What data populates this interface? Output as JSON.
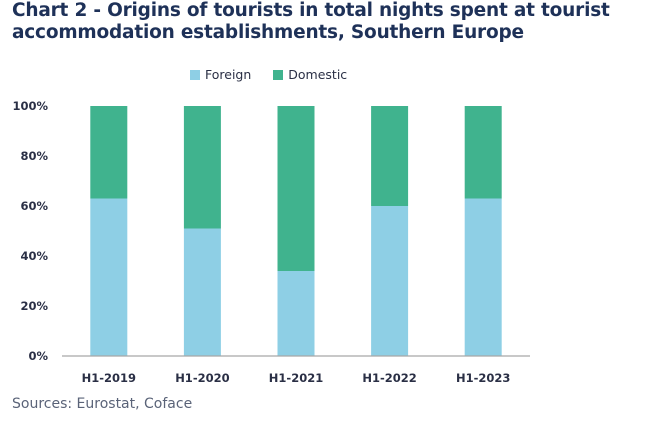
{
  "chart_data": {
    "type": "bar",
    "stacked": true,
    "percent": true,
    "title": "Chart 2 - Origins of tourists in total nights spent at tourist accommodation establishments, Southern Europe",
    "categories": [
      "H1-2019",
      "H1-2020",
      "H1-2021",
      "H1-2022",
      "H1-2023"
    ],
    "series": [
      {
        "name": "Foreign",
        "color": "#8ecfe5",
        "values": [
          63,
          51,
          34,
          60,
          63
        ]
      },
      {
        "name": "Domestic",
        "color": "#40b38e",
        "values": [
          37,
          49,
          66,
          40,
          37
        ]
      }
    ],
    "yticks": [
      "0%",
      "20%",
      "40%",
      "60%",
      "80%",
      "100%"
    ],
    "ylim": [
      0,
      100
    ],
    "xlabel": "",
    "ylabel": "",
    "legend": "top-center",
    "grid": false,
    "source": "Sources: Eurostat, Coface"
  }
}
